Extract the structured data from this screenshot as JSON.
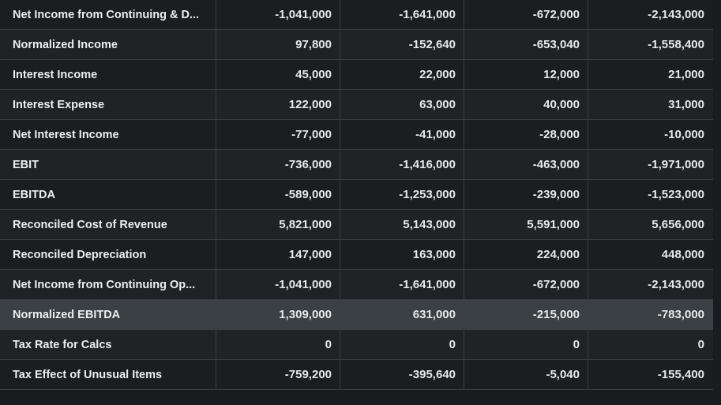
{
  "columns": [
    "",
    "",
    "",
    "",
    ""
  ],
  "rows": [
    {
      "label": "Net Income from Continuing & D...",
      "values": [
        "-1,041,000",
        "-1,641,000",
        "-672,000",
        "-2,143,000"
      ]
    },
    {
      "label": "Normalized Income",
      "values": [
        "97,800",
        "-152,640",
        "-653,040",
        "-1,558,400"
      ]
    },
    {
      "label": "Interest Income",
      "values": [
        "45,000",
        "22,000",
        "12,000",
        "21,000"
      ]
    },
    {
      "label": "Interest Expense",
      "values": [
        "122,000",
        "63,000",
        "40,000",
        "31,000"
      ]
    },
    {
      "label": "Net Interest Income",
      "values": [
        "-77,000",
        "-41,000",
        "-28,000",
        "-10,000"
      ]
    },
    {
      "label": "EBIT",
      "values": [
        "-736,000",
        "-1,416,000",
        "-463,000",
        "-1,971,000"
      ]
    },
    {
      "label": "EBITDA",
      "values": [
        "-589,000",
        "-1,253,000",
        "-239,000",
        "-1,523,000"
      ]
    },
    {
      "label": "Reconciled Cost of Revenue",
      "values": [
        "5,821,000",
        "5,143,000",
        "5,591,000",
        "5,656,000"
      ]
    },
    {
      "label": "Reconciled Depreciation",
      "values": [
        "147,000",
        "163,000",
        "224,000",
        "448,000"
      ]
    },
    {
      "label": "Net Income from Continuing Op...",
      "values": [
        "-1,041,000",
        "-1,641,000",
        "-672,000",
        "-2,143,000"
      ]
    },
    {
      "label": "Normalized EBITDA",
      "values": [
        "1,309,000",
        "631,000",
        "-215,000",
        "-783,000"
      ]
    },
    {
      "label": "Tax Rate for Calcs",
      "values": [
        "0",
        "0",
        "0",
        "0"
      ]
    },
    {
      "label": "Tax Effect of Unusual Items",
      "values": [
        "-759,200",
        "-395,640",
        "-5,040",
        "-155,400"
      ]
    }
  ],
  "highlighted_row": 10,
  "colors": {
    "background": "#1a1c20",
    "row": "#1b1d21",
    "row_alt": "#202226",
    "highlight": "#3a4044",
    "border": "#3a3d42",
    "text": "#e8e8e8"
  }
}
